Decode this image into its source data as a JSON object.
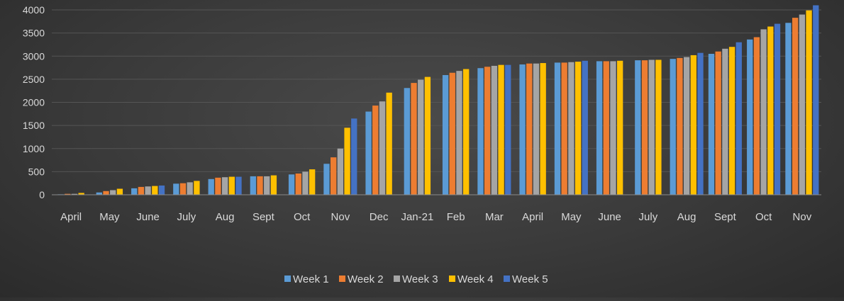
{
  "chart_data": {
    "type": "bar",
    "title": "",
    "xlabel": "",
    "ylabel": "",
    "ylim": [
      0,
      4000
    ],
    "yticks": [
      0,
      500,
      1000,
      1500,
      2000,
      2500,
      3000,
      3500,
      4000
    ],
    "grid": true,
    "legend_position": "bottom",
    "categories": [
      "April",
      "May",
      "June",
      "July",
      "Aug",
      "Sept",
      "Oct",
      "Nov",
      "Dec",
      "Jan-21",
      "Feb",
      "Mar",
      "April",
      "May",
      "June",
      "July",
      "Aug",
      "Sept",
      "Oct",
      "Nov"
    ],
    "series": [
      {
        "name": "Week 1",
        "color": "#5b9bd5",
        "values": [
          10,
          50,
          140,
          240,
          340,
          400,
          440,
          670,
          1800,
          2310,
          2590,
          2740,
          2820,
          2860,
          2890,
          2910,
          2940,
          3050,
          3360,
          3720
        ]
      },
      {
        "name": "Week 2",
        "color": "#ed7d31",
        "values": [
          20,
          80,
          170,
          250,
          370,
          400,
          460,
          810,
          1930,
          2420,
          2640,
          2770,
          2840,
          2860,
          2890,
          2910,
          2960,
          3100,
          3410,
          3830
        ]
      },
      {
        "name": "Week 3",
        "color": "#a5a5a5",
        "values": [
          20,
          100,
          180,
          270,
          380,
          400,
          500,
          1000,
          2020,
          2490,
          2680,
          2790,
          2840,
          2870,
          2890,
          2920,
          2980,
          3160,
          3580,
          3900
        ]
      },
      {
        "name": "Week 4",
        "color": "#ffc000",
        "values": [
          40,
          130,
          190,
          300,
          390,
          420,
          550,
          1450,
          2210,
          2550,
          2720,
          2810,
          2850,
          2880,
          2900,
          2920,
          3020,
          3200,
          3640,
          3990
        ]
      },
      {
        "name": "Week 5",
        "color": "#4472c4",
        "values": [
          null,
          null,
          200,
          null,
          390,
          null,
          null,
          1650,
          null,
          null,
          null,
          2810,
          null,
          2900,
          null,
          null,
          3070,
          3300,
          3700,
          4100
        ]
      }
    ]
  }
}
